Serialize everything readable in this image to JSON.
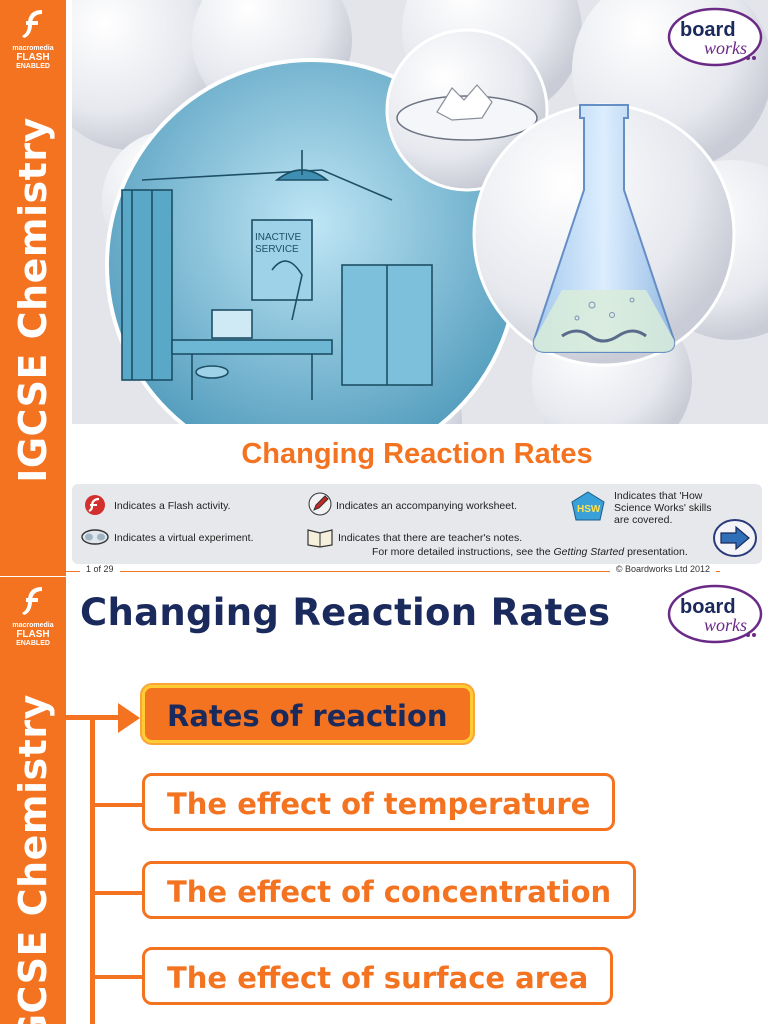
{
  "sidebar": {
    "vertical_title": "IGCSE Chemistry",
    "badge_line1": "macromedia",
    "badge_line2": "FLASH",
    "badge_line3": "ENABLED"
  },
  "logo": {
    "line1": "board",
    "line2": "works"
  },
  "hero": {
    "poster_line1": "INACTIVE",
    "poster_line2": "SERVICE"
  },
  "slide1": {
    "title": "Changing Reaction Rates",
    "legend": {
      "flash": "Indicates a Flash activity.",
      "experiment": "Indicates a virtual experiment.",
      "worksheet": "Indicates an accompanying worksheet.",
      "notes": "Indicates that there are teacher's notes.",
      "hsw_line1": "Indicates that 'How",
      "hsw_line2": "Science Works' skills",
      "hsw_line3": "are covered.",
      "hsw_badge": "HSW",
      "instructions_prefix": "For more detailed instructions, see the",
      "instructions_link": "Getting Started",
      "instructions_suffix": "presentation."
    },
    "page_number": "1 of 29",
    "copyright": "© Boardworks Ltd 2012"
  },
  "slide2": {
    "title": "Changing Reaction Rates",
    "menu": [
      "Rates of reaction",
      "The effect of temperature",
      "The effect of concentration",
      "The effect of surface area"
    ]
  },
  "colors": {
    "orange": "#f47320",
    "navy": "#1b2a5c",
    "purple": "#6a2a86"
  }
}
